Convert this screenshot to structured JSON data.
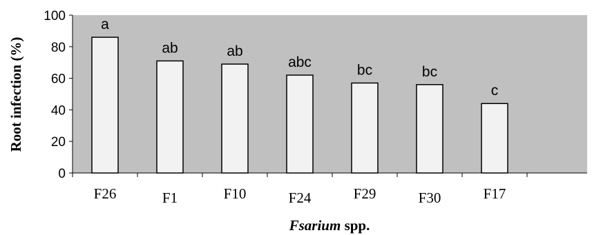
{
  "chart_data": {
    "type": "bar",
    "categories": [
      "F26",
      "F1",
      "F10",
      "F24",
      "F29",
      "F30",
      "F17"
    ],
    "values": [
      86,
      71,
      69,
      62,
      57,
      56,
      44
    ],
    "significance_letters": [
      "a",
      "ab",
      "ab",
      "abc",
      "bc",
      "bc",
      "c"
    ],
    "xlabel_italic": "Fsarium",
    "xlabel_rest": " spp.",
    "ylabel": "Root  infection (%)",
    "ylim": [
      0,
      100
    ],
    "yticks": [
      "0",
      "20",
      "40",
      "60",
      "80",
      "100"
    ],
    "grid": false,
    "legend": "none",
    "colors": {
      "plot_background": "#c0c0c0",
      "bar_fill": "#f2f2f2",
      "bar_stroke": "#000000"
    }
  }
}
